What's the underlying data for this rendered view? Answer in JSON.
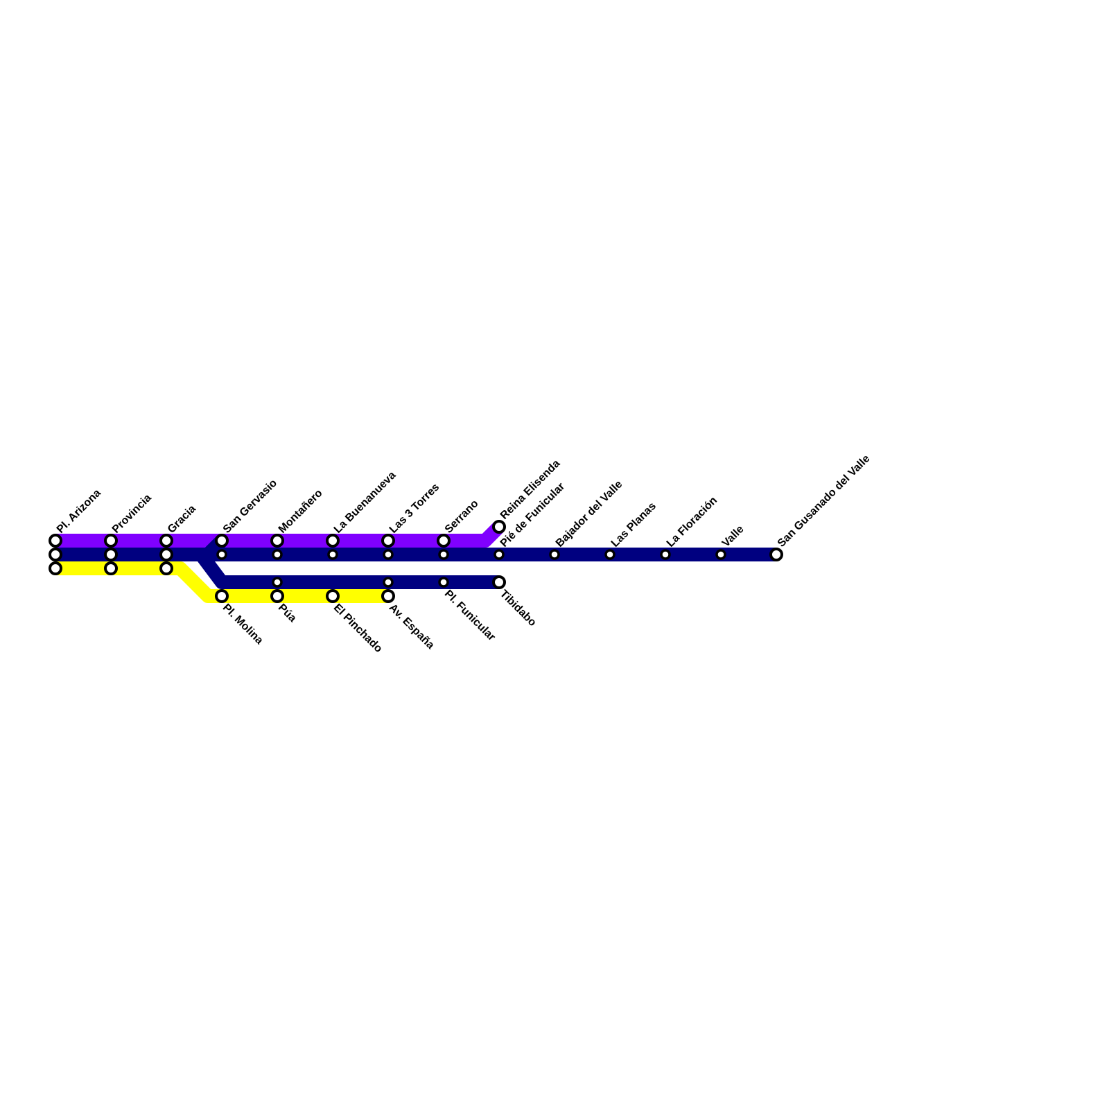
{
  "stations": [
    {
      "label": "Pl. Arizona"
    },
    {
      "label": "Provincia"
    },
    {
      "label": "Gracia"
    },
    {
      "label": "San Gervasio"
    },
    {
      "label": "Montañero"
    },
    {
      "label": "La Buenanueva"
    },
    {
      "label": "Las 3 Torres"
    },
    {
      "label": "Serrano"
    },
    {
      "label": "Reina Elisenda"
    },
    {
      "label": "Pié de Funicular"
    },
    {
      "label": "Bajador del Valle"
    },
    {
      "label": "Las Planas"
    },
    {
      "label": "La Floración"
    },
    {
      "label": "Valle"
    },
    {
      "label": "San Gusanado del Valle"
    },
    {
      "label": "Pl. Molina"
    },
    {
      "label": "Púa"
    },
    {
      "label": "El Pinchado"
    },
    {
      "label": "Av. España"
    },
    {
      "label": "Pl. Funicular"
    },
    {
      "label": "Tibidabo"
    }
  ]
}
